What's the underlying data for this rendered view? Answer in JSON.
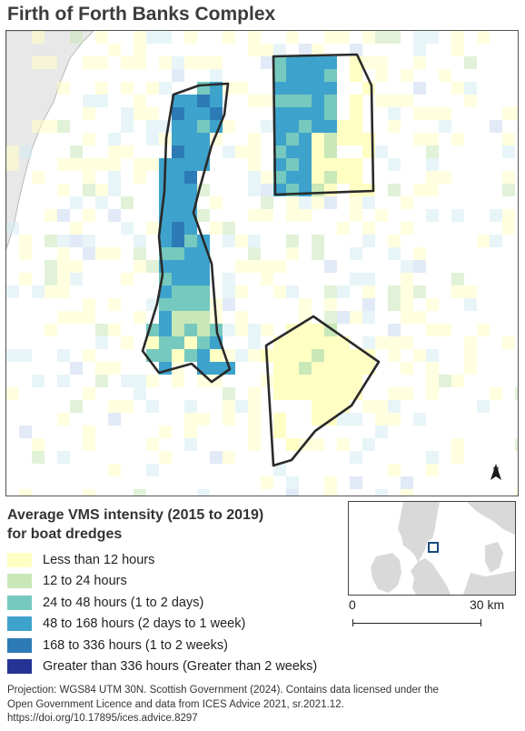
{
  "map": {
    "title": "Firth of Forth Banks Complex",
    "colors": {
      "land": "#e8e8e8",
      "coast": "#b8b8b8",
      "boundary": "#2a2a2a",
      "class_1": "#ffffc4",
      "class_2": "#c9e8b8",
      "class_3": "#76c9be",
      "class_4": "#3ea3cc",
      "class_5": "#2c7bb6",
      "class_6": "#253494"
    },
    "north_arrow": {
      "label": "N",
      "icon": "north-arrow-icon"
    }
  },
  "legend": {
    "title_line1": "Average VMS intensity (2015 to 2019)",
    "title_line2": "for boat dredges",
    "items": [
      {
        "label": "Less than 12 hours",
        "color": "#ffffc4"
      },
      {
        "label": "12 to 24 hours",
        "color": "#c9e8b8"
      },
      {
        "label": "24 to 48 hours (1 to 2 days)",
        "color": "#76c9be"
      },
      {
        "label": "48 to 168 hours (2 days to 1 week)",
        "color": "#3ea3cc"
      },
      {
        "label": "168 to 336 hours (1 to 2 weeks)",
        "color": "#2c7bb6"
      },
      {
        "label": "Greater than 336 hours (Greater than 2 weeks)",
        "color": "#253494"
      }
    ]
  },
  "inset": {
    "land_color": "#d9d9d9",
    "sea_color": "#ffffff",
    "locator_color": "#1a4a7a"
  },
  "scalebar": {
    "start_label": "0",
    "end_label": "30 km"
  },
  "source": {
    "line1": "Projection: WGS84 UTM 30N. Scottish Government (2024). Contains data licensed under the",
    "line2": "Open Government Licence and data from ICES Advice 2021, sr.2021.12.",
    "line3": "https://doi.org/10.17895/ices.advice.8297"
  }
}
